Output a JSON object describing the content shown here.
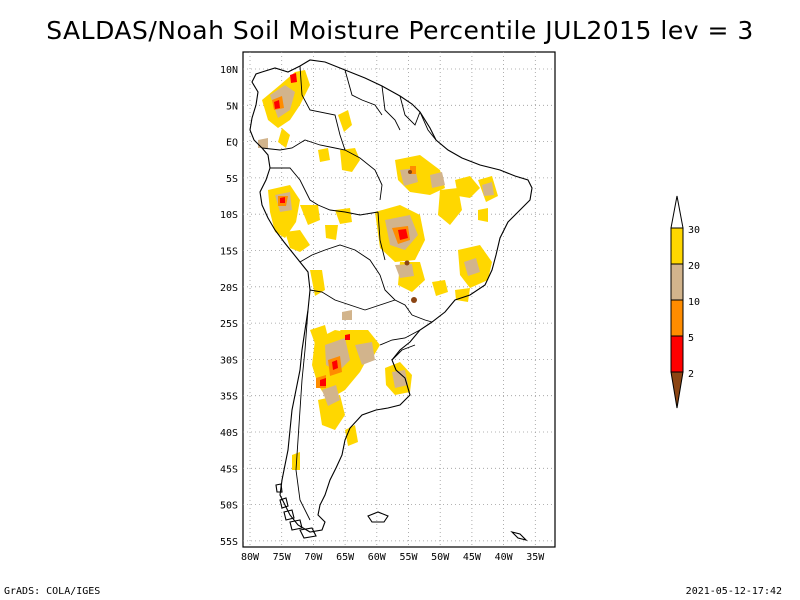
{
  "title": "SALDAS/Noah Soil Moisture Percentile JUL2015 lev = 3",
  "lat_labels": [
    "10N",
    "5N",
    "EQ",
    "5S",
    "10S",
    "15S",
    "20S",
    "25S",
    "30S",
    "35S",
    "40S",
    "45S",
    "50S",
    "55S"
  ],
  "lon_labels": [
    "80W",
    "75W",
    "70W",
    "65W",
    "60W",
    "55W",
    "50W",
    "45W",
    "40W",
    "35W"
  ],
  "colorbar": {
    "labels": [
      "2",
      "5",
      "10",
      "20",
      "30"
    ],
    "colors": {
      "below_2": "#8b4513",
      "2_5": "#ff0000",
      "5_10": "#ff8c00",
      "10_20": "#d2b48c",
      "20_30": "#ffd700",
      "above_30": "#ffffff"
    }
  },
  "footer": {
    "left": "GrADS: COLA/IGES",
    "right": "2021-05-12-17:42"
  }
}
